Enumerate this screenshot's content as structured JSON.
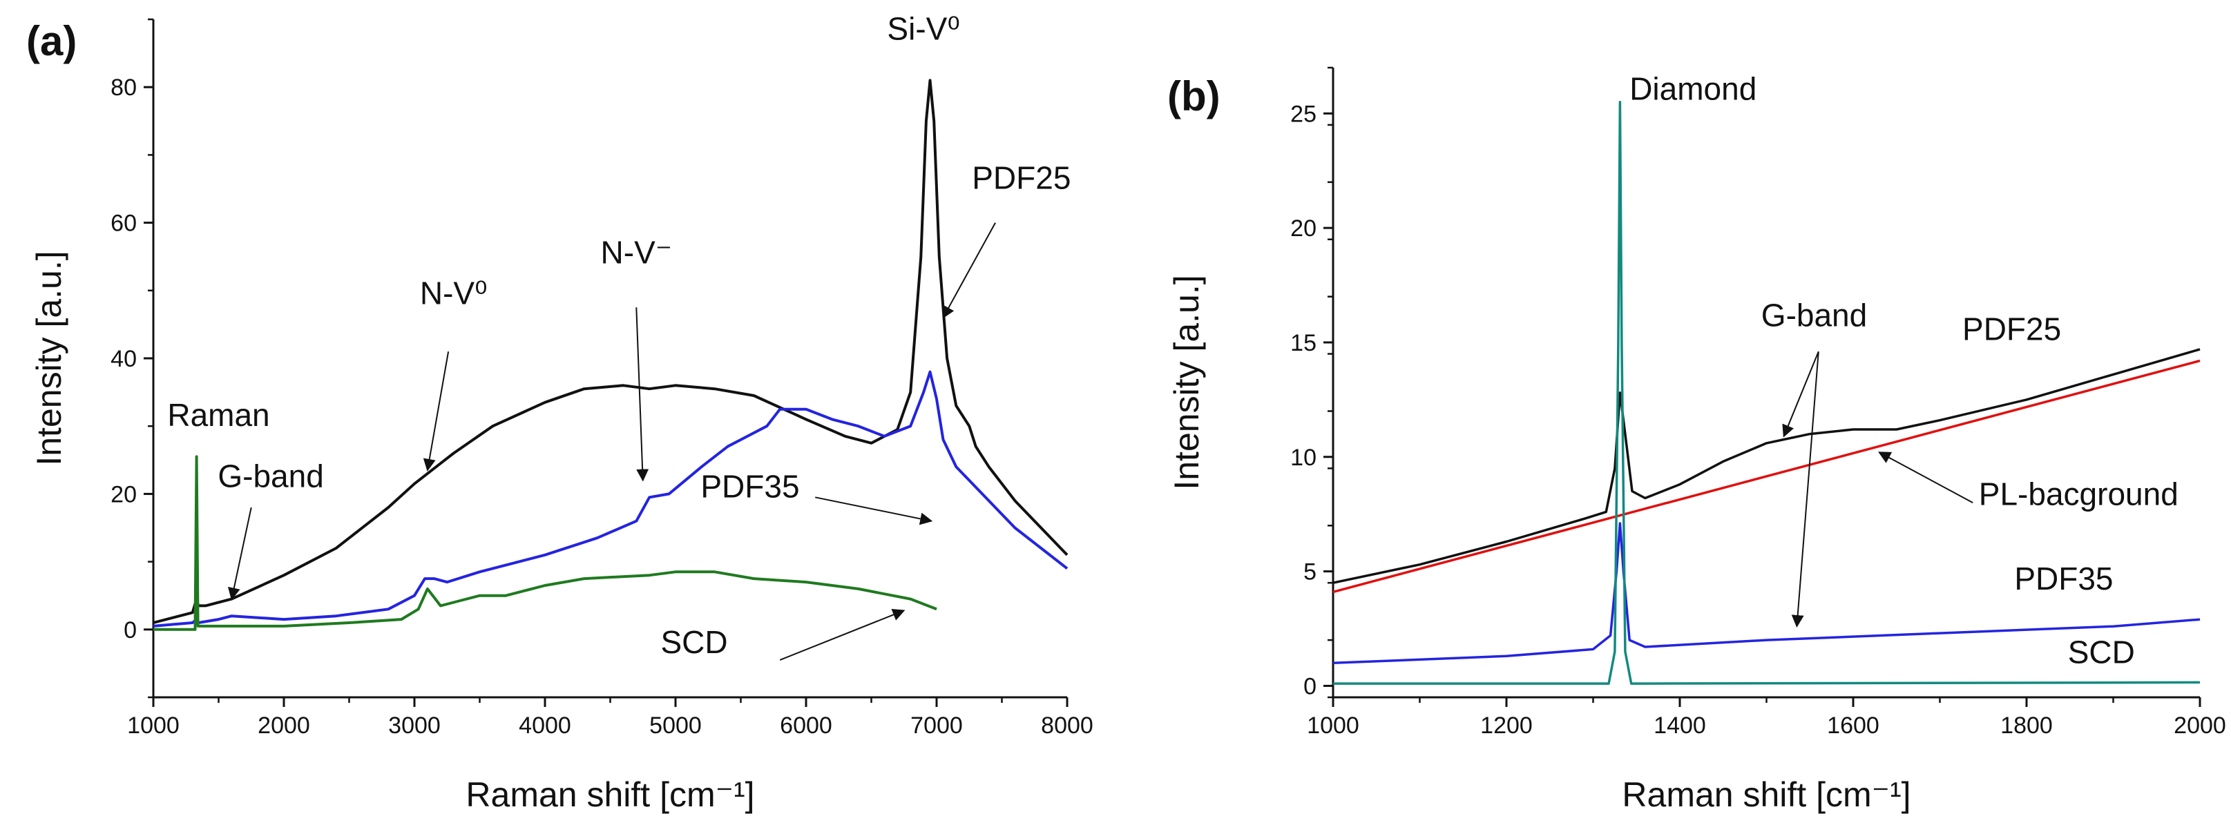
{
  "chart_data": [
    {
      "panel": "(a)",
      "type": "line",
      "xlabel": "Raman shift  [cm⁻¹]",
      "ylabel": "Intensity [a.u.]",
      "xlim": [
        1000,
        8000
      ],
      "ylim": [
        -10,
        90
      ],
      "xticks": [
        1000,
        2000,
        3000,
        4000,
        5000,
        6000,
        7000,
        8000
      ],
      "xtick_labels": [
        "1000",
        "2000",
        "3000",
        "4000",
        "5000",
        "6000",
        "7000",
        "8000"
      ],
      "yticks": [
        0,
        20,
        40,
        60,
        80
      ],
      "ytick_labels": [
        "0",
        "20",
        "40",
        "60",
        "80"
      ],
      "series": [
        {
          "name": "PDF25",
          "color": "#111111",
          "x": [
            1000,
            1300,
            1331,
            1345,
            1400,
            1600,
            2000,
            2400,
            2800,
            3000,
            3100,
            3300,
            3600,
            4000,
            4300,
            4600,
            4800,
            5000,
            5300,
            5600,
            6000,
            6300,
            6500,
            6700,
            6800,
            6880,
            6920,
            6950,
            6980,
            7020,
            7080,
            7150,
            7250,
            7300,
            7400,
            7600,
            7800,
            8000
          ],
          "y": [
            1,
            2.5,
            4.5,
            3.5,
            3.5,
            4.5,
            8,
            12,
            18,
            21.5,
            23,
            26,
            30,
            33.5,
            35.5,
            36,
            35.5,
            36,
            35.5,
            34.5,
            31,
            28.5,
            27.5,
            29.5,
            35,
            55,
            75,
            81,
            75,
            55,
            40,
            33,
            30,
            27,
            24,
            19,
            15,
            11
          ]
        },
        {
          "name": "PDF35",
          "color": "#2424e0",
          "x": [
            1000,
            1300,
            1331,
            1345,
            1500,
            1600,
            2000,
            2400,
            2800,
            3000,
            3080,
            3150,
            3250,
            3500,
            4000,
            4400,
            4700,
            4800,
            4950,
            5200,
            5400,
            5700,
            5800,
            6000,
            6200,
            6400,
            6600,
            6800,
            6900,
            6950,
            7000,
            7050,
            7150,
            7300,
            7600,
            8000
          ],
          "y": [
            0.5,
            1,
            1.5,
            1,
            1.5,
            2,
            1.5,
            2,
            3,
            5,
            7.5,
            7.5,
            7,
            8.5,
            11,
            13.5,
            16,
            19.5,
            20,
            24,
            27,
            30,
            32.5,
            32.5,
            31,
            30,
            28.5,
            30,
            35,
            38,
            34,
            28,
            24,
            21,
            15,
            9
          ]
        },
        {
          "name": "SCD",
          "color": "#1f7a1f",
          "x": [
            1000,
            1320,
            1331,
            1342,
            1400,
            2000,
            2500,
            2900,
            3030,
            3100,
            3200,
            3300,
            3500,
            3700,
            4000,
            4300,
            4800,
            5000,
            5300,
            5600,
            6000,
            6400,
            6800,
            7000
          ],
          "y": [
            0,
            0,
            25.5,
            0.5,
            0.5,
            0.5,
            1,
            1.5,
            3,
            6,
            3.5,
            4,
            5,
            5,
            6.5,
            7.5,
            8,
            8.5,
            8.5,
            7.5,
            7,
            6,
            4.5,
            3
          ]
        }
      ],
      "annotations": [
        {
          "text": "Raman",
          "x": 1500,
          "y": 30
        },
        {
          "text": "G-band",
          "x": 1900,
          "y": 21
        },
        {
          "text": "N-V⁰",
          "x": 3300,
          "y": 48
        },
        {
          "text": "N-V⁻",
          "x": 4700,
          "y": 54
        },
        {
          "text": "Si-V⁰",
          "x": 6900,
          "y": 87
        },
        {
          "text": "PDF25",
          "x": 7650,
          "y": 65
        },
        {
          "text": "PDF35",
          "x": 5950,
          "y": 19.5
        },
        {
          "text": "SCD",
          "x": 5400,
          "y": -3.5
        }
      ]
    },
    {
      "panel": "(b)",
      "type": "line",
      "xlabel": "Raman shift  [cm⁻¹]",
      "ylabel": "Intensity [a.u.]",
      "xlim": [
        1000,
        2000
      ],
      "ylim": [
        -0.5,
        27
      ],
      "xticks": [
        1000,
        1200,
        1400,
        1600,
        1800,
        2000
      ],
      "xtick_labels": [
        "1000",
        "1200",
        "1400",
        "1600",
        "1800",
        "2000"
      ],
      "yticks": [
        0,
        5,
        10,
        15,
        20,
        25
      ],
      "ytick_labels": [
        "0",
        "5",
        "10",
        "15",
        "20",
        "25"
      ],
      "series": [
        {
          "name": "PDF25",
          "color": "#111111",
          "x": [
            1000,
            1100,
            1200,
            1290,
            1315,
            1325,
            1331,
            1337,
            1345,
            1360,
            1400,
            1450,
            1500,
            1550,
            1600,
            1650,
            1700,
            1800,
            1900,
            2000
          ],
          "y": [
            4.5,
            5.3,
            6.3,
            7.3,
            7.6,
            9.5,
            12.8,
            11.0,
            8.5,
            8.2,
            8.8,
            9.8,
            10.6,
            11.0,
            11.2,
            11.2,
            11.6,
            12.5,
            13.6,
            14.7
          ]
        },
        {
          "name": "PL-bacground",
          "color": "#e01010",
          "x": [
            1000,
            2000
          ],
          "y": [
            4.1,
            14.2
          ]
        },
        {
          "name": "PDF35",
          "color": "#2424e0",
          "x": [
            1000,
            1200,
            1300,
            1320,
            1327,
            1331,
            1335,
            1342,
            1360,
            1500,
            1700,
            1900,
            2000
          ],
          "y": [
            1.0,
            1.3,
            1.6,
            2.2,
            5.0,
            7.1,
            5.0,
            2.0,
            1.7,
            2.0,
            2.3,
            2.6,
            2.9
          ]
        },
        {
          "name": "SCD",
          "color": "#138a80",
          "x": [
            1000,
            1318,
            1325,
            1329,
            1331,
            1333,
            1337,
            1344,
            1360,
            2000
          ],
          "y": [
            0.1,
            0.1,
            1.5,
            15.0,
            25.5,
            15.0,
            1.5,
            0.1,
            0.1,
            0.15
          ]
        }
      ],
      "annotations": [
        {
          "text": "Diamond",
          "x": 1342,
          "y": 25.6
        },
        {
          "text": "G-band",
          "x": 1555,
          "y": 15.7
        },
        {
          "text": "PDF25",
          "x": 1840,
          "y": 15.1
        },
        {
          "text": "PL-bacground",
          "x": 1860,
          "y": 7.9
        },
        {
          "text": "PDF35",
          "x": 1900,
          "y": 4.2
        },
        {
          "text": "SCD",
          "x": 1925,
          "y": 1.0
        }
      ]
    }
  ]
}
